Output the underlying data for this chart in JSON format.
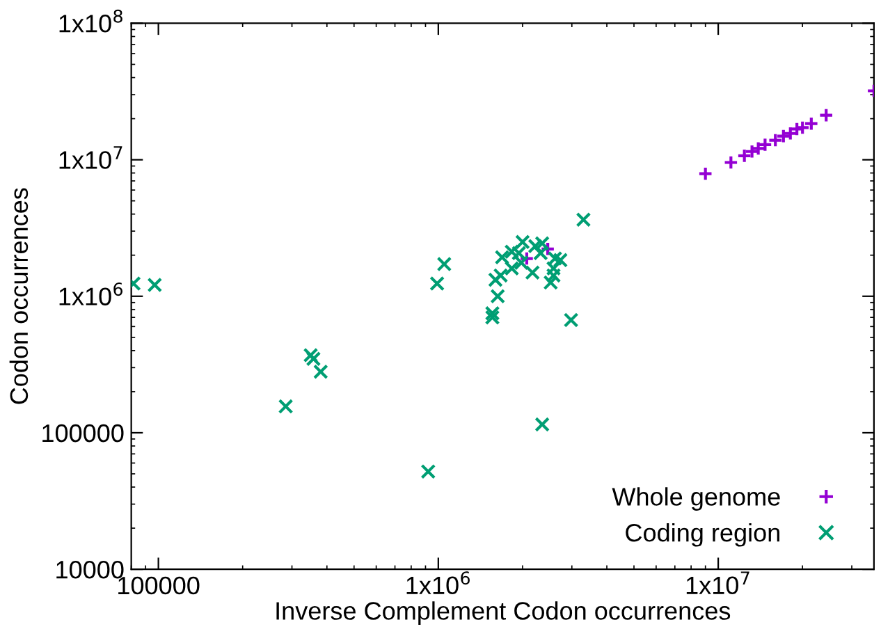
{
  "chart_data": {
    "type": "scatter",
    "xlabel": "Inverse Complement Codon occurrences",
    "ylabel": "Codon occurrences",
    "log": "xy",
    "grid": false,
    "legend": "bottom right",
    "xlim": [
      80000,
      36000000
    ],
    "ylim": [
      10000,
      100000000
    ],
    "xticks": [
      100000,
      {
        "value": 1000000,
        "label": "1x10$^{6}$"
      },
      {
        "value": 10000000,
        "label": "1x10$^{7}$"
      }
    ],
    "yticks": [
      10000,
      100000,
      {
        "value": 1000000,
        "label": "1x10$^{6}$"
      },
      {
        "value": 10000000,
        "label": "1x10$^{7}$"
      },
      {
        "value": 100000000,
        "label": "1x10$^{8}$"
      }
    ],
    "series": [
      {
        "name": "Whole genome",
        "color": "#9400d3",
        "marker": "cross",
        "x": [
          2070000,
          2460000,
          9000000,
          11100000,
          12400000,
          13200000,
          13900000,
          14700000,
          16000000,
          17100000,
          18100000,
          19100000,
          20000000,
          21500000,
          24300000,
          36000000
        ],
        "values": [
          1890000,
          2220000,
          7900000,
          9550000,
          10700000,
          11500000,
          12100000,
          12900000,
          13900000,
          14900000,
          15600000,
          16800000,
          17200000,
          18400000,
          21200000,
          32000000
        ]
      },
      {
        "name": "Coding region",
        "color": "#009e73",
        "marker": "x",
        "x": [
          81500,
          97000,
          358000,
          350000,
          380000,
          285000,
          920000,
          3300000,
          1050000,
          990000,
          1690000,
          1830000,
          1940000,
          2000000,
          2220000,
          2350000,
          2320000,
          1980000,
          1830000,
          1670000,
          1600000,
          2170000,
          2610000,
          2730000,
          2580000,
          2580000,
          2520000,
          1630000,
          1560000,
          1560000,
          2980000,
          2350000
        ],
        "values": [
          1240000,
          1210000,
          348000,
          370000,
          280000,
          156000,
          52000,
          3640000,
          1720000,
          1240000,
          1930000,
          2120000,
          2070000,
          2500000,
          2330000,
          2440000,
          2070000,
          1760000,
          1600000,
          1420000,
          1320000,
          1490000,
          1890000,
          1840000,
          1600000,
          1420000,
          1260000,
          1000000,
          700000,
          750000,
          670000,
          115000
        ]
      }
    ]
  }
}
